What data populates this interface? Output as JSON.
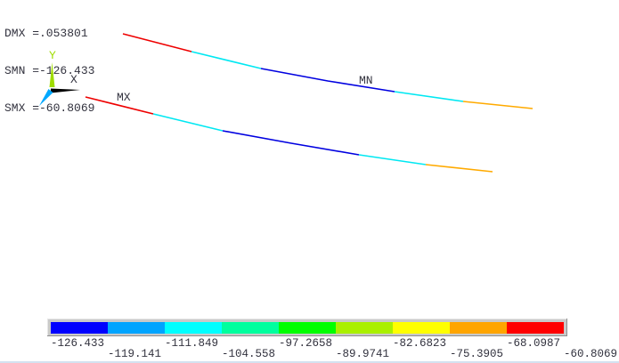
{
  "annotations": {
    "dmx": "DMX =.053801",
    "smn": "SMN =-126.433",
    "smx": "SMX =-60.8069"
  },
  "triad": {
    "x_label": "X",
    "y_label": "Y",
    "x_color": "#000000",
    "y_color": "#9fdc00",
    "z_color": "#00a8ff"
  },
  "model": {
    "min_label": "MN",
    "max_label": "MX",
    "beams": [
      {
        "name": "upper-beam",
        "segments": [
          {
            "color": "#ee0000",
            "points": [
              [
                138,
                38
              ],
              [
                215,
                58
              ]
            ]
          },
          {
            "color": "#00e8f2",
            "points": [
              [
                215,
                58
              ],
              [
                293,
                77
              ]
            ]
          },
          {
            "color": "#0000e0",
            "points": [
              [
                293,
                77
              ],
              [
                368,
                91
              ],
              [
                443,
                103
              ]
            ]
          },
          {
            "color": "#00e8f2",
            "points": [
              [
                443,
                103
              ],
              [
                520,
                114
              ]
            ]
          },
          {
            "color": "#ffaa00",
            "points": [
              [
                520,
                114
              ],
              [
                598,
                122
              ]
            ]
          }
        ]
      },
      {
        "name": "lower-beam",
        "segments": [
          {
            "color": "#ee0000",
            "points": [
              [
                96,
                109
              ],
              [
                172,
                128
              ]
            ]
          },
          {
            "color": "#00e8f2",
            "points": [
              [
                172,
                128
              ],
              [
                250,
                147
              ]
            ]
          },
          {
            "color": "#0000e0",
            "points": [
              [
                250,
                147
              ],
              [
                327,
                161
              ],
              [
                403,
                174
              ]
            ]
          },
          {
            "color": "#00e8f2",
            "points": [
              [
                403,
                174
              ],
              [
                478,
                185
              ]
            ]
          },
          {
            "color": "#ffaa00",
            "points": [
              [
                478,
                185
              ],
              [
                553,
                193
              ]
            ]
          }
        ]
      }
    ]
  },
  "legend": {
    "colors": [
      "#0000ff",
      "#00a4ff",
      "#00ffff",
      "#00ff9e",
      "#00ff00",
      "#aaf000",
      "#ffff00",
      "#ffa500",
      "#ff0000"
    ],
    "values": [
      "-126.433",
      "-119.141",
      "-111.849",
      "-104.558",
      "-97.2658",
      "-89.9741",
      "-82.6823",
      "-75.3905",
      "-68.0987",
      "-60.8069"
    ]
  }
}
